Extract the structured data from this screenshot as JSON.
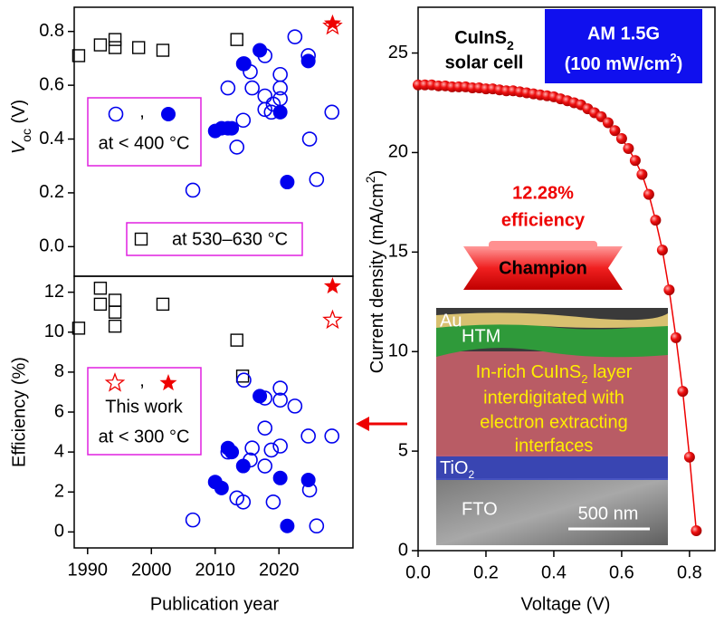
{
  "chart_data": [
    {
      "type": "scatter",
      "y_label": [
        "V",
        "oc",
        " (V)"
      ],
      "xlim": [
        1987.9,
        2031.6
      ],
      "ylim": [
        -0.11,
        0.89
      ],
      "yticks": [
        {
          "value": 0,
          "label": "0.0"
        },
        0.2,
        0.4,
        0.6,
        0.8
      ],
      "series": [
        {
          "marker": "square-open",
          "color": "#000000",
          "x": [
            1988.6,
            1992.0,
            1994.3,
            1994.3,
            1998.0,
            2001.8,
            2013.4
          ],
          "values": [
            0.71,
            0.75,
            0.77,
            0.74,
            0.74,
            0.73,
            0.77
          ]
        },
        {
          "marker": "circle-open",
          "color": "#0000ee",
          "x": [
            2006.5,
            2012.0,
            2013.4,
            2014.4,
            2014.5,
            2015.5,
            2015.8,
            2017.8,
            2017.8,
            2017.8,
            2018.8,
            2019.1,
            2020.2,
            2020.2,
            2020.2,
            2022.5,
            2024.6,
            2024.8,
            2025.9,
            2028.3
          ],
          "values": [
            0.21,
            0.59,
            0.37,
            0.47,
            0.68,
            0.65,
            0.59,
            0.71,
            0.56,
            0.51,
            0.5,
            0.53,
            0.55,
            0.64,
            0.59,
            0.78,
            0.71,
            0.4,
            0.25,
            0.5
          ]
        },
        {
          "marker": "circle",
          "color": "#0000ee",
          "x": [
            2010.0,
            2011.0,
            2012.0,
            2012.6,
            2014.4,
            2017.0,
            2020.2,
            2021.3,
            2024.6
          ],
          "values": [
            0.43,
            0.44,
            0.44,
            0.44,
            0.68,
            0.73,
            0.5,
            0.24,
            0.69
          ]
        },
        {
          "marker": "star-open",
          "color": "#ee0000",
          "x": [
            2028.4
          ],
          "values": [
            0.82
          ]
        },
        {
          "marker": "star",
          "color": "#ee0000",
          "x": [
            2028.4
          ],
          "values": [
            0.83
          ]
        }
      ],
      "legends": [
        {
          "separator": ",",
          "lines": [
            "at < 400 °C"
          ]
        },
        {
          "lines": [
            "at 530–630 °C"
          ]
        }
      ]
    },
    {
      "type": "scatter",
      "y_label": "Efficiency (%)",
      "x_label": "Publication year",
      "xlim": [
        1987.9,
        2031.6
      ],
      "ylim": [
        -0.8,
        12.8
      ],
      "xticks": [
        1990,
        2000,
        2010,
        2020
      ],
      "yticks": [
        0,
        2,
        4,
        6,
        8,
        10,
        12
      ],
      "series": [
        {
          "marker": "square-open",
          "color": "#000000",
          "x": [
            1988.6,
            1992.0,
            1992.0,
            1994.3,
            1994.3,
            1994.3,
            2001.8,
            2013.4,
            2014.3
          ],
          "values": [
            10.2,
            12.2,
            11.4,
            11.6,
            11.0,
            10.3,
            11.4,
            9.6,
            7.8
          ]
        },
        {
          "marker": "circle-open",
          "color": "#0000ee",
          "x": [
            2006.5,
            2012.0,
            2013.4,
            2014.4,
            2014.5,
            2015.5,
            2015.8,
            2017.8,
            2017.8,
            2017.8,
            2018.8,
            2019.1,
            2020.2,
            2020.2,
            2020.2,
            2022.5,
            2024.6,
            2024.8,
            2025.9,
            2028.3
          ],
          "values": [
            0.6,
            4.0,
            1.7,
            1.5,
            7.6,
            3.6,
            4.2,
            6.7,
            5.2,
            3.3,
            4.1,
            1.5,
            7.2,
            6.6,
            4.3,
            6.3,
            4.8,
            2.1,
            0.3,
            4.8
          ]
        },
        {
          "marker": "circle",
          "color": "#0000ee",
          "x": [
            2010.0,
            2011.0,
            2012.0,
            2012.6,
            2014.4,
            2017.0,
            2020.2,
            2021.3,
            2024.6
          ],
          "values": [
            2.5,
            2.2,
            4.2,
            4.0,
            3.3,
            6.8,
            2.7,
            0.3,
            2.6
          ]
        },
        {
          "marker": "star-open",
          "color": "#ee0000",
          "x": [
            2028.4
          ],
          "values": [
            10.6
          ]
        },
        {
          "marker": "star",
          "color": "#ee0000",
          "x": [
            2028.4
          ],
          "values": [
            12.3
          ]
        }
      ],
      "legends": [
        {
          "separator": ",",
          "lines": [
            "This work",
            "at < 300 °C"
          ]
        }
      ]
    },
    {
      "type": "line",
      "y_label": [
        "Current density (mA/cm",
        "2",
        ")"
      ],
      "x_label": "Voltage (V)",
      "xlim": [
        0,
        0.875
      ],
      "ylim": [
        0,
        27.3
      ],
      "xticks": [
        {
          "value": 0,
          "label": "0.0"
        },
        0.2,
        0.4,
        0.6,
        0.8
      ],
      "yticks": [
        0,
        5,
        10,
        15,
        20,
        25
      ],
      "series": [
        {
          "marker": "ball",
          "color": "#ee0000",
          "x": [
            0,
            0.02,
            0.04,
            0.06,
            0.08,
            0.1,
            0.12,
            0.14,
            0.16,
            0.18,
            0.2,
            0.22,
            0.24,
            0.26,
            0.28,
            0.3,
            0.32,
            0.34,
            0.36,
            0.38,
            0.4,
            0.42,
            0.44,
            0.46,
            0.48,
            0.5,
            0.52,
            0.54,
            0.56,
            0.58,
            0.6,
            0.62,
            0.64,
            0.66,
            0.68,
            0.7,
            0.72,
            0.74,
            0.76,
            0.78,
            0.8,
            0.82
          ],
          "values": [
            23.4,
            23.4,
            23.4,
            23.35,
            23.35,
            23.3,
            23.3,
            23.3,
            23.25,
            23.25,
            23.2,
            23.2,
            23.15,
            23.1,
            23.1,
            23.05,
            23.0,
            22.95,
            22.9,
            22.85,
            22.8,
            22.7,
            22.6,
            22.5,
            22.4,
            22.2,
            22.0,
            21.8,
            21.5,
            21.1,
            20.7,
            20.2,
            19.6,
            18.9,
            17.9,
            16.6,
            15.1,
            13.1,
            10.7,
            8.0,
            4.7,
            1.0
          ]
        }
      ],
      "device_label": [
        "CuInS",
        "2",
        "solar cell"
      ],
      "illumination": [
        "AM 1.5G",
        "(100 mW/cm",
        "2",
        ")"
      ],
      "efficiency": [
        "12.28%",
        "efficiency"
      ],
      "badge": "Champion",
      "image_labels": {
        "au": "Au",
        "htm": "HTM",
        "absorber": [
          "In-rich CuInS",
          "2",
          " layer",
          "interdigitated with",
          "electron extracting",
          "interfaces"
        ],
        "tio2": [
          "TiO",
          "2"
        ],
        "fto": "FTO",
        "scale_bar": "500 nm"
      }
    }
  ]
}
